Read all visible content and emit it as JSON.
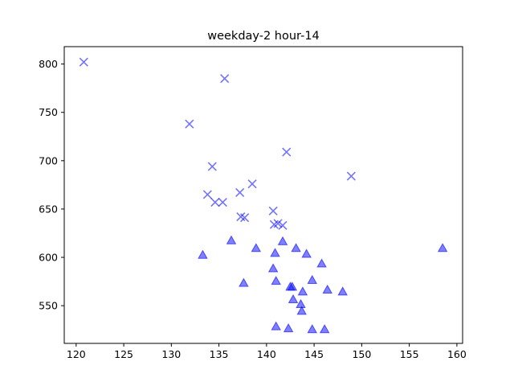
{
  "chart_data": {
    "type": "scatter",
    "title": "weekday-2 hour-14",
    "xlabel": "",
    "ylabel": "",
    "xlim": [
      118.75,
      160.6
    ],
    "ylim": [
      511,
      818
    ],
    "xticks": [
      120,
      125,
      130,
      135,
      140,
      145,
      150,
      155,
      160
    ],
    "yticks": [
      550,
      600,
      650,
      700,
      750,
      800
    ],
    "grid": false,
    "series": [
      {
        "marker": "x",
        "color": "#0000ff",
        "points": [
          [
            120.8,
            802
          ],
          [
            135.6,
            785
          ],
          [
            131.9,
            738
          ],
          [
            142.1,
            709
          ],
          [
            134.3,
            694
          ],
          [
            148.9,
            684
          ],
          [
            138.5,
            676
          ],
          [
            137.2,
            667
          ],
          [
            133.8,
            665
          ],
          [
            134.6,
            657
          ],
          [
            135.4,
            657
          ],
          [
            140.7,
            648
          ],
          [
            137.3,
            642
          ],
          [
            137.7,
            641
          ],
          [
            140.8,
            634
          ],
          [
            141.2,
            635
          ],
          [
            141.7,
            633
          ]
        ]
      },
      {
        "marker": "triangle",
        "color": "#0000ff",
        "points": [
          [
            133.3,
            602
          ],
          [
            136.3,
            617
          ],
          [
            137.6,
            573
          ],
          [
            138.9,
            609
          ],
          [
            140.7,
            588
          ],
          [
            140.9,
            604
          ],
          [
            141.0,
            575
          ],
          [
            141.0,
            528
          ],
          [
            141.7,
            616
          ],
          [
            142.3,
            526
          ],
          [
            142.5,
            569
          ],
          [
            142.7,
            569
          ],
          [
            142.8,
            556
          ],
          [
            143.1,
            609
          ],
          [
            143.6,
            551
          ],
          [
            143.7,
            544
          ],
          [
            143.8,
            564
          ],
          [
            144.2,
            603
          ],
          [
            144.8,
            576
          ],
          [
            144.8,
            525
          ],
          [
            145.8,
            593
          ],
          [
            146.1,
            525
          ],
          [
            146.4,
            566
          ],
          [
            148.0,
            564
          ],
          [
            158.5,
            609
          ]
        ]
      }
    ]
  }
}
